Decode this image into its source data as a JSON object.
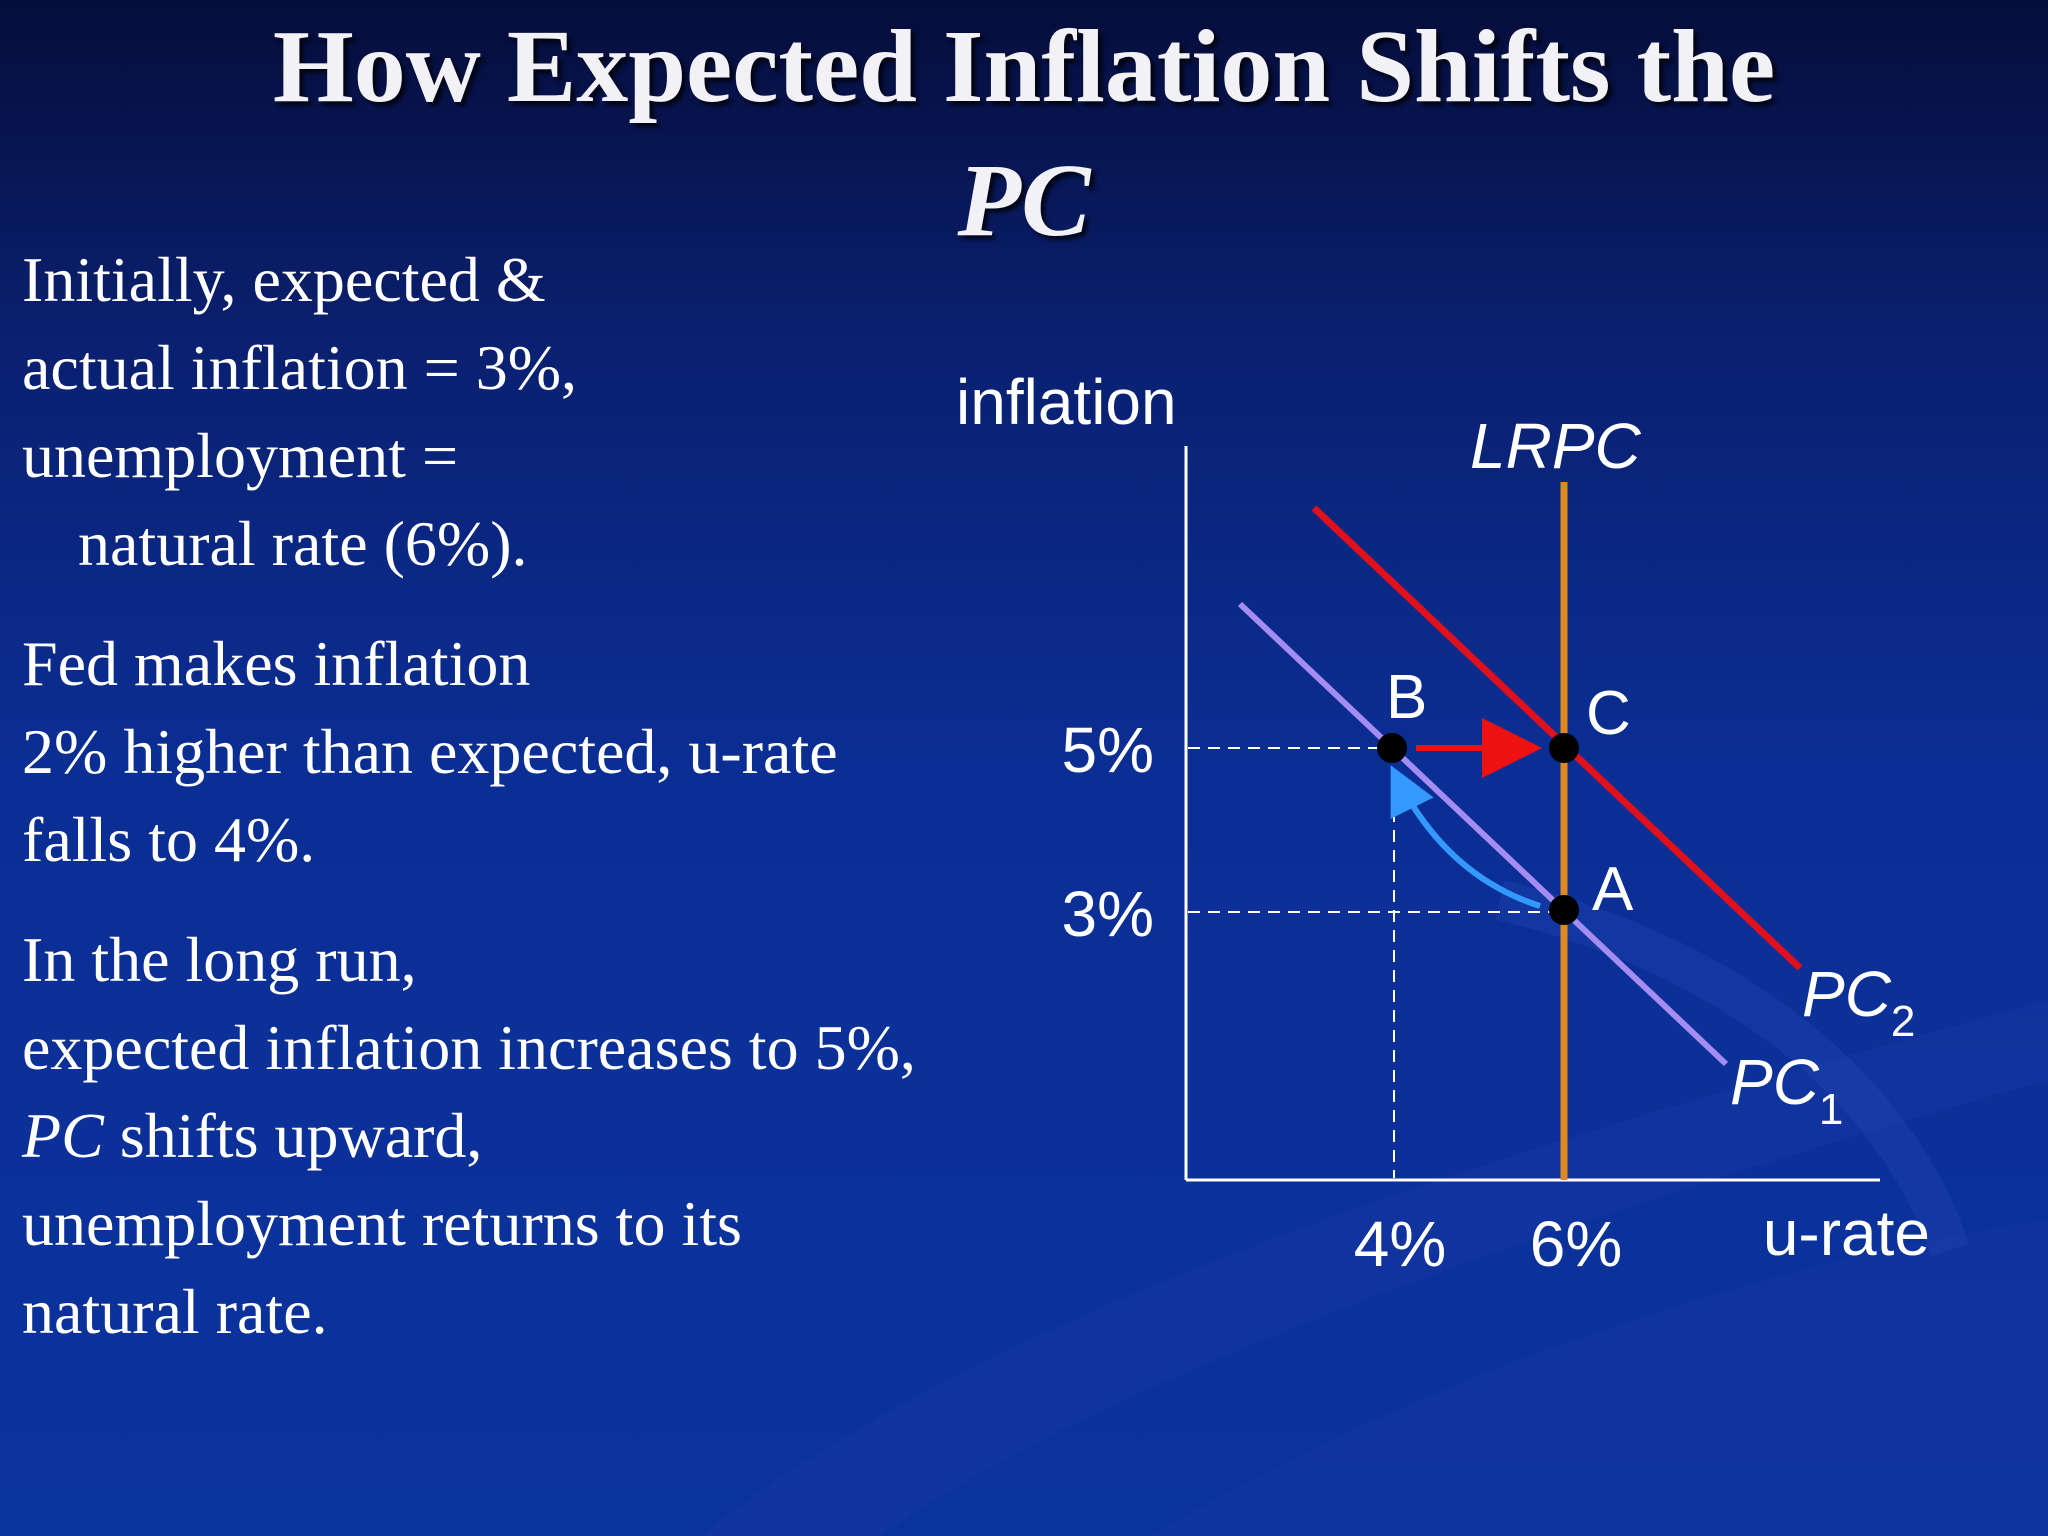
{
  "title": {
    "line1": "How Expected Inflation Shifts the",
    "line2": "PC"
  },
  "bullets": [
    {
      "lines": [
        "Initially, expected &",
        "actual inflation = 3%,",
        "unemployment =",
        "natural rate (6%)."
      ]
    },
    {
      "lines": [
        "Fed makes inflation",
        "2% higher than expected, u-rate",
        "falls to 4%."
      ]
    },
    {
      "lines": [
        "In the long run,",
        "expected inflation increases to 5%,",
        "shifts upward,",
        "unemployment returns to its",
        "natural rate."
      ],
      "emphasis": "PC"
    }
  ],
  "diagram": {
    "y_axis_label": "inflation",
    "x_axis_label": "u-rate",
    "y_ticks": [
      "5%",
      "3%"
    ],
    "x_ticks": [
      "4%",
      "6%"
    ],
    "curves": {
      "lrpc": "LRPC",
      "pc1_base": "PC",
      "pc1_sub": "1",
      "pc2_base": "PC",
      "pc2_sub": "2"
    },
    "points": {
      "A": "A",
      "B": "B",
      "C": "C"
    },
    "colors": {
      "lrpc": "#e08a1e",
      "pc1": "#a48cf2",
      "pc2": "#e0101c",
      "shift_arrow": "#ee1111",
      "move_arrow": "#3399ff",
      "axes": "#ffffff",
      "guides": "#ffffff",
      "points": "#000000"
    }
  }
}
